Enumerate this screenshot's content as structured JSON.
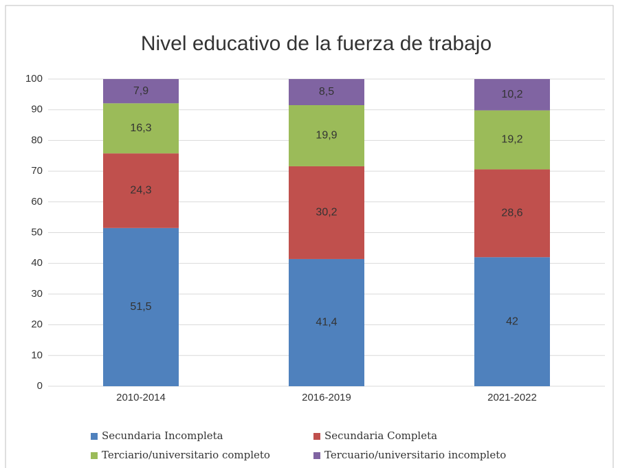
{
  "chart_data": {
    "type": "stacked_bar",
    "title": "Nivel educativo de la fuerza de trabajo",
    "categories": [
      "2010-2014",
      "2016-2019",
      "2021-2022"
    ],
    "series": [
      {
        "name": "Secundaria Incompleta",
        "color": "#4f81bd",
        "values": [
          51.5,
          41.4,
          42
        ],
        "value_labels": [
          "51,5",
          "41,4",
          "42"
        ]
      },
      {
        "name": "Secundaria Completa",
        "color": "#c0504d",
        "values": [
          24.3,
          30.2,
          28.6
        ],
        "value_labels": [
          "24,3",
          "30,2",
          "28,6"
        ]
      },
      {
        "name": "Terciario/universitario completo",
        "color": "#9bbb59",
        "values": [
          16.3,
          19.9,
          19.2
        ],
        "value_labels": [
          "16,3",
          "19,9",
          "19,2"
        ]
      },
      {
        "name": "Tercuario/universitario incompleto",
        "color": "#8064a2",
        "values": [
          7.9,
          8.5,
          10.2
        ],
        "value_labels": [
          "7,9",
          "8,5",
          "10,2"
        ]
      }
    ],
    "ylim": [
      0,
      100
    ],
    "yticks": [
      0,
      10,
      20,
      30,
      40,
      50,
      60,
      70,
      80,
      90,
      100
    ],
    "grid": true,
    "legend": "bottom"
  }
}
